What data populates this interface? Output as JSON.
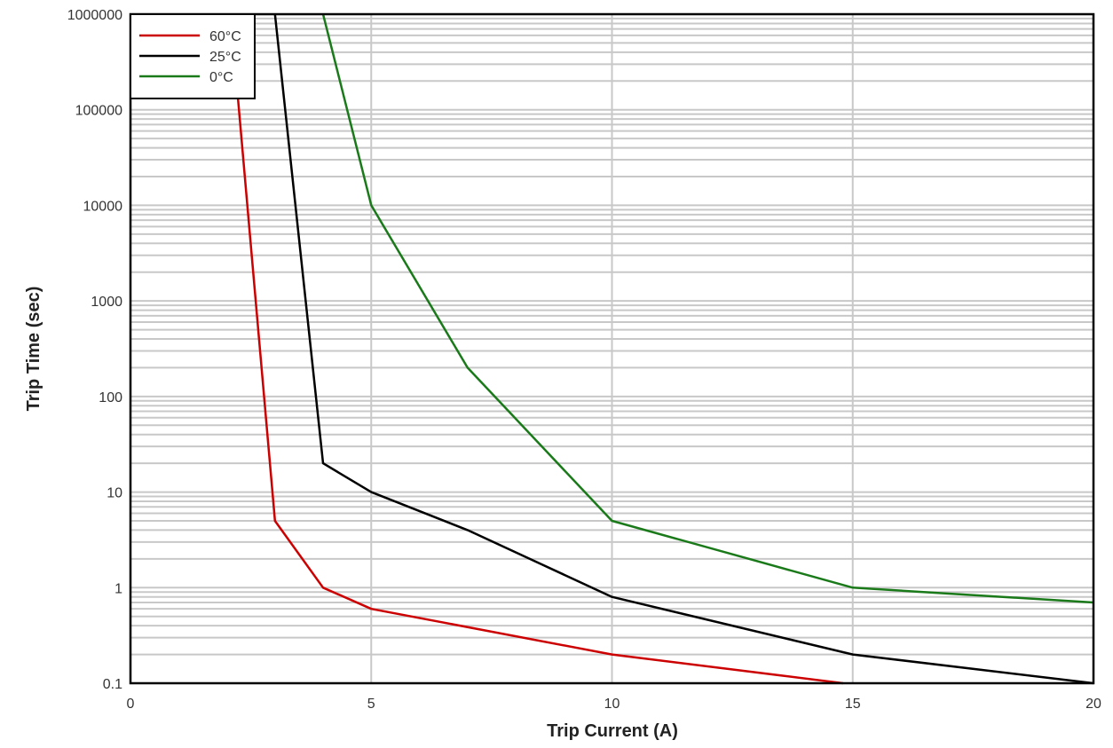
{
  "chart_data": {
    "type": "line",
    "title": "",
    "xlabel": "Trip Current (A)",
    "ylabel": "Trip Time (sec)",
    "xlim": [
      0,
      20
    ],
    "ylim": [
      0.1,
      1000000
    ],
    "yscale": "log",
    "x_ticks": [
      "0",
      "5",
      "10",
      "15",
      "20"
    ],
    "y_ticks": [
      "0.1",
      "1",
      "10",
      "100",
      "1000",
      "10000",
      "100000",
      "1000000"
    ],
    "grid": true,
    "legend_position": "top-left",
    "series": [
      {
        "name": "60°C",
        "color": "#cc0000",
        "points": [
          [
            2.2,
            200000
          ],
          [
            3,
            5
          ],
          [
            4,
            1
          ],
          [
            5,
            0.6
          ],
          [
            10,
            0.2
          ],
          [
            14.8,
            0.1
          ]
        ]
      },
      {
        "name": "25°C",
        "color": "#000000",
        "points": [
          [
            3,
            1000000
          ],
          [
            4,
            20
          ],
          [
            5,
            10
          ],
          [
            7,
            4
          ],
          [
            10,
            0.8
          ],
          [
            15,
            0.2
          ],
          [
            20,
            0.1
          ]
        ]
      },
      {
        "name": "0°C",
        "color": "#1a7a1a",
        "points": [
          [
            4,
            1000000
          ],
          [
            5,
            10000
          ],
          [
            7,
            200
          ],
          [
            10,
            5
          ],
          [
            15,
            1
          ],
          [
            20,
            0.7
          ]
        ]
      }
    ]
  }
}
